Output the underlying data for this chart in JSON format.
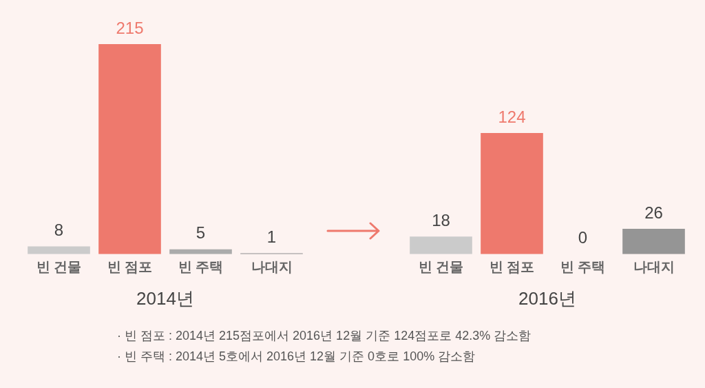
{
  "chart_data": [
    {
      "type": "bar",
      "xlabel": "2014년",
      "categories": [
        "빈 건물",
        "빈 점포",
        "빈 주택",
        "나대지"
      ],
      "values": [
        8,
        215,
        5,
        1
      ],
      "colors": [
        "#cbcbcb",
        "#ee796d",
        "#ababab",
        "#959595"
      ],
      "data_labels": true,
      "grid": false,
      "legend": false,
      "tick_labels": "x",
      "annotations": [
        "· 빈 점포 : 2014년 215점포에서 2016년 12월 기준 124점포로 42.3% 감소함",
        "· 빈 주택 : 2014년 5호에서 2016년 12월 기준 0호로 100% 감소함"
      ]
    },
    {
      "type": "bar",
      "xlabel": "2016년",
      "categories": [
        "빈 건물",
        "빈 점포",
        "빈 주택",
        "나대지"
      ],
      "values": [
        18,
        124,
        0,
        26
      ],
      "colors": [
        "#cbcbcb",
        "#ee796d",
        "#ababab",
        "#959595"
      ],
      "data_labels": true,
      "grid": false,
      "legend": false,
      "tick_labels": "x"
    }
  ]
}
